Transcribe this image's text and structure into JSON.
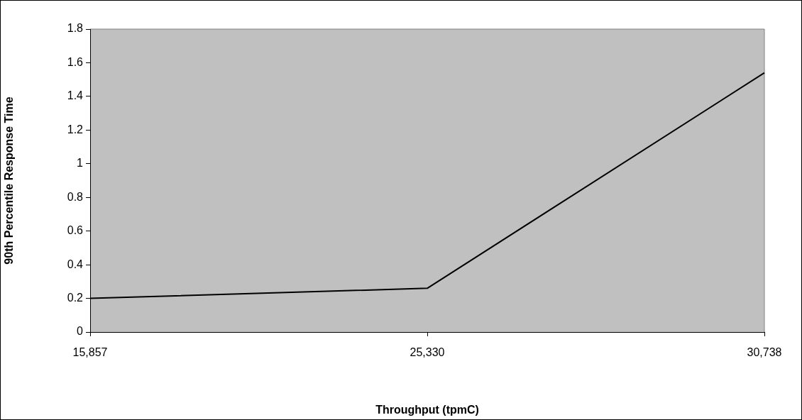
{
  "chart_data": {
    "type": "line",
    "xlabel": "Throughput (tpmC)",
    "ylabel": "90th Percentile Response Time",
    "categories": [
      "15,857",
      "25,330",
      "30,738"
    ],
    "series": [
      {
        "color": "#000000",
        "values": [
          0.2,
          0.26,
          1.54
        ]
      }
    ],
    "ylim": [
      0,
      1.8
    ],
    "yticks": [
      0,
      0.2,
      0.4,
      0.6,
      0.8,
      1,
      1.2,
      1.4,
      1.6,
      1.8
    ],
    "grid": false,
    "legend": false,
    "marker": "none",
    "line_style": "solid"
  }
}
